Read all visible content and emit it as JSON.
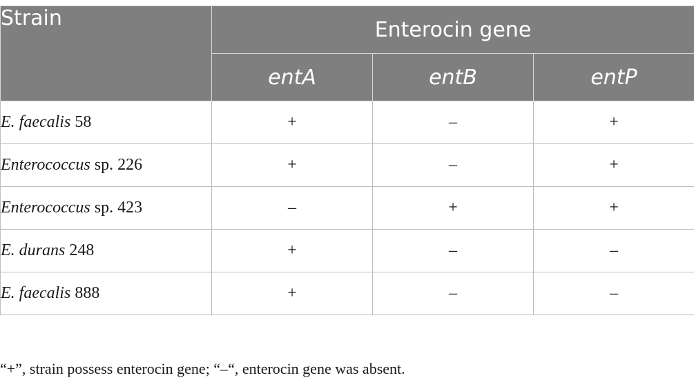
{
  "table": {
    "header": {
      "strain": "Strain",
      "group": "Enterocin gene",
      "genes": [
        "entA",
        "entB",
        "entP"
      ]
    },
    "rows": [
      {
        "genus": "E. faecalis",
        "suffix": " 58",
        "values": [
          "+",
          "–",
          "+"
        ]
      },
      {
        "genus": "Enterococcus",
        "suffix": " sp. 226",
        "values": [
          "+",
          "–",
          "+"
        ]
      },
      {
        "genus": "Enterococcus",
        "suffix": " sp. 423",
        "values": [
          "–",
          "+",
          "+"
        ]
      },
      {
        "genus": "E. durans",
        "suffix": " 248",
        "values": [
          "+",
          "–",
          "–"
        ]
      },
      {
        "genus": "E. faecalis",
        "suffix": " 888",
        "values": [
          "+",
          "–",
          "–"
        ]
      }
    ]
  },
  "footnote": "“+”, strain possess enterocin gene; “–“, enterocin gene was absent."
}
